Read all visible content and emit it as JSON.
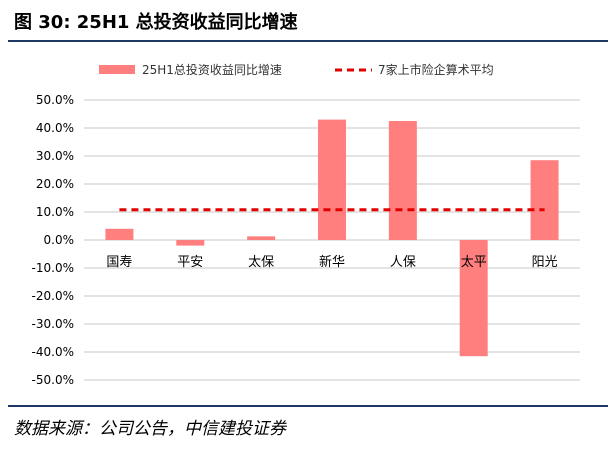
{
  "header": {
    "title": "图 30: 25H1 总投资收益同比增速"
  },
  "footer": {
    "source": "数据来源：公司公告，中信建投证券"
  },
  "colors": {
    "bar": "#ff7f7f",
    "average_line": "#e00000",
    "grid": "#c8c8c8",
    "rule": "#1f3864"
  },
  "chart_data": {
    "type": "bar",
    "title": "",
    "xlabel": "",
    "ylabel": "",
    "categories": [
      "国寿",
      "平安",
      "太保",
      "新华",
      "人保",
      "太平",
      "阳光"
    ],
    "series": [
      {
        "name": "25H1总投资收益同比增速",
        "type": "bar",
        "values": [
          4.0,
          -2.0,
          1.3,
          43.0,
          42.5,
          -41.5,
          28.5
        ]
      },
      {
        "name": "7家上市险企算术平均",
        "type": "line",
        "style": "dashed",
        "value": 10.8
      }
    ],
    "ylim": [
      -50,
      50
    ],
    "y_ticks": [
      "50.0%",
      "40.0%",
      "30.0%",
      "20.0%",
      "10.0%",
      "0.0%",
      "-10.0%",
      "-20.0%",
      "-30.0%",
      "-40.0%",
      "-50.0%"
    ],
    "grid": true,
    "legend_position": "top"
  }
}
